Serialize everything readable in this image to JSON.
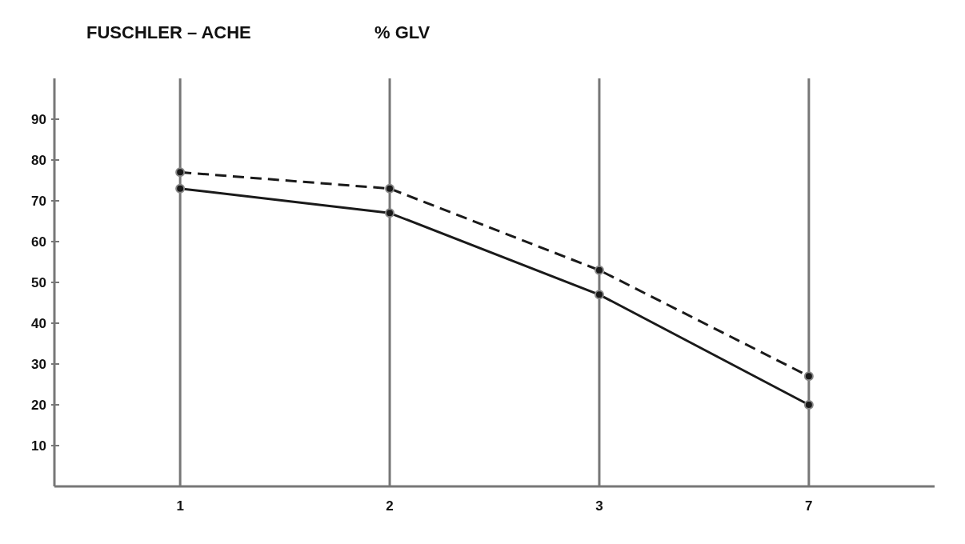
{
  "chart_data": {
    "type": "line",
    "title": "FUSCHLER – ACHE",
    "ylabel": "% GLV",
    "categories": [
      "1",
      "2",
      "3",
      "7"
    ],
    "series": [
      {
        "color": "#1a1a1a",
        "values": [
          77,
          73,
          53,
          27
        ],
        "line_style": "dashed"
      },
      {
        "color": "#1a1a1a",
        "values": [
          73,
          67,
          47,
          20
        ],
        "line_style": "solid"
      }
    ],
    "ylim": [
      0,
      100
    ],
    "yticks": [
      10,
      20,
      30,
      40,
      50,
      60,
      70,
      80,
      90
    ],
    "grid": "x",
    "marker": "circle"
  }
}
